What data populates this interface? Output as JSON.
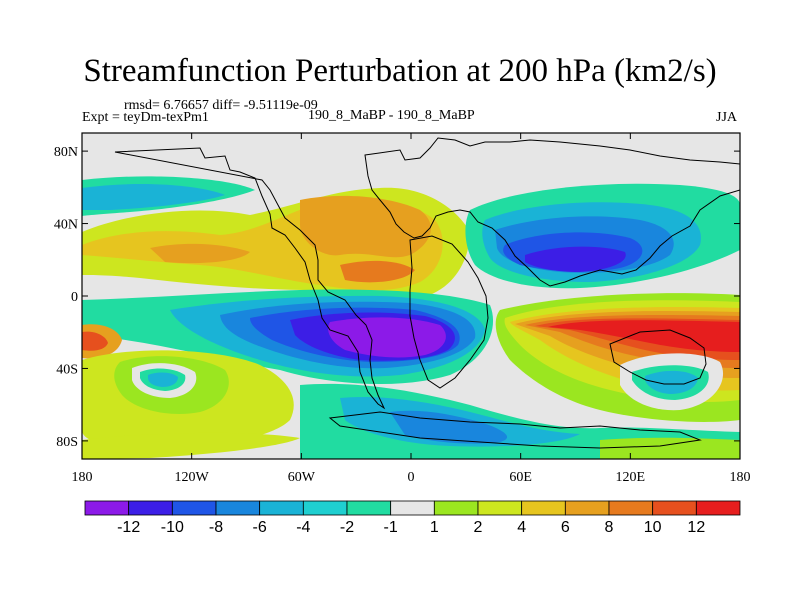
{
  "header": {
    "title": "Streamfunction Perturbation at 200 hPa (km2/s)",
    "stats": "rmsd= 6.76657 diff= -9.51119e-09",
    "experiment": "Expt = teyDm-texPm1",
    "comparison": "190_8_MaBP - 190_8_MaBP",
    "season": "JJA"
  },
  "map": {
    "projection": "cylindrical-equidistant",
    "lon_range": [
      -180,
      180
    ],
    "lat_range": [
      -90,
      90
    ],
    "x_ticks": [
      {
        "value": -180,
        "label": "180"
      },
      {
        "value": -120,
        "label": "120W"
      },
      {
        "value": -60,
        "label": "60W"
      },
      {
        "value": 0,
        "label": "0"
      },
      {
        "value": 60,
        "label": "60E"
      },
      {
        "value": 120,
        "label": "120E"
      },
      {
        "value": 180,
        "label": "180"
      }
    ],
    "y_ticks": [
      {
        "value": 80,
        "label": "80N"
      },
      {
        "value": 40,
        "label": "40N"
      },
      {
        "value": 0,
        "label": "0"
      },
      {
        "value": -40,
        "label": "40S"
      },
      {
        "value": -80,
        "label": "80S"
      }
    ],
    "features": [
      {
        "name": "southern-anticyclone-red",
        "center": [
          100,
          -25
        ],
        "radius": [
          55,
          20
        ],
        "value": 13
      },
      {
        "name": "south-atlantic-cyclone-purple",
        "center": [
          -15,
          -18
        ],
        "radius": [
          45,
          18
        ],
        "value": -13
      },
      {
        "name": "asian-cyclone-blue",
        "center": [
          90,
          22
        ],
        "radius": [
          45,
          18
        ],
        "value": -11
      },
      {
        "name": "atlantic-anticyclone-orange",
        "center": [
          -20,
          28
        ],
        "radius": [
          45,
          22
        ],
        "value": 8
      },
      {
        "name": "pacific-anticyclone-orange",
        "center": [
          -130,
          28
        ],
        "radius": [
          60,
          18
        ],
        "value": 5
      },
      {
        "name": "south-pacific-yellow",
        "center": [
          -120,
          -35
        ],
        "radius": [
          60,
          25
        ],
        "value": 3
      },
      {
        "name": "south-pacific-cyan-cell",
        "center": [
          -145,
          -45
        ],
        "radius": [
          12,
          8
        ],
        "value": -3
      },
      {
        "name": "australia-cyan-cell",
        "center": [
          145,
          -45
        ],
        "radius": [
          15,
          10
        ],
        "value": -4
      }
    ]
  },
  "colorbar": {
    "colors": [
      "#8c1ae8",
      "#3c1ee6",
      "#1f55e6",
      "#1986dd",
      "#1ab3d6",
      "#1fcfd0",
      "#21dca1",
      "#e6e6e6",
      "#9be620",
      "#cde61f",
      "#e6c51f",
      "#e6a01f",
      "#e67a1e",
      "#e6501e",
      "#e61e1e"
    ],
    "labels": [
      "-12",
      "-10",
      "-8",
      "-6",
      "-4",
      "-2",
      "-1",
      "1",
      "2",
      "4",
      "6",
      "8",
      "10",
      "12"
    ]
  }
}
